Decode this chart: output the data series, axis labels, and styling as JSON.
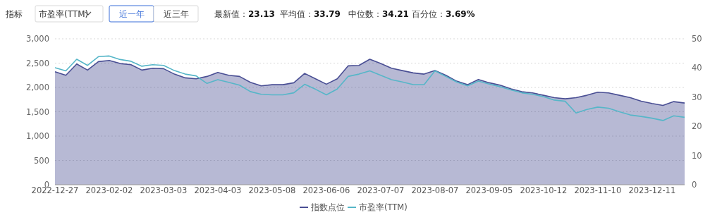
{
  "chart_data": {
    "type": "area",
    "annotations": [
      "指标",
      "市盈率(TTM)",
      "近一年",
      "近三年",
      "最新值：**23.13**",
      "平均值：**33.79**",
      "中位数：**34.21**",
      "百分位：**3.69%**"
    ],
    "categories": [
      "2022-12-27",
      null,
      null,
      null,
      null,
      "2023-02-02",
      null,
      null,
      null,
      null,
      "2023-03-03",
      null,
      null,
      null,
      null,
      "2023-04-03",
      null,
      null,
      null,
      null,
      "2023-05-08",
      null,
      null,
      null,
      null,
      "2023-06-06",
      null,
      null,
      null,
      null,
      "2023-07-07",
      null,
      null,
      null,
      null,
      "2023-08-07",
      null,
      null,
      null,
      null,
      "2023-09-05",
      null,
      null,
      null,
      null,
      "2023-10-12",
      null,
      null,
      null,
      null,
      "2023-11-10",
      null,
      null,
      null,
      null,
      "2023-12-11",
      null,
      null,
      null
    ],
    "series": [
      {
        "name": "指数点位",
        "type": "area",
        "color": "#4a4f94",
        "values": [
          2323,
          2250,
          2482,
          2356,
          2531,
          2555,
          2492,
          2468,
          2356,
          2395,
          2385,
          2274,
          2197,
          2177,
          2226,
          2308,
          2250,
          2226,
          2105,
          2032,
          2056,
          2056,
          2095,
          2289,
          2177,
          2066,
          2177,
          2444,
          2453,
          2579,
          2492,
          2395,
          2347,
          2298,
          2274,
          2347,
          2250,
          2129,
          2056,
          2163,
          2095,
          2047,
          1969,
          1911,
          1887,
          1839,
          1790,
          1766,
          1790,
          1839,
          1902,
          1887,
          1839,
          1790,
          1718,
          1669,
          1631,
          1708,
          1679
        ]
      },
      {
        "name": "市盈率(TTM)",
        "type": "line",
        "axis": "y2",
        "color": "#56b6c8",
        "values": [
          40.1,
          39.0,
          43.0,
          40.9,
          43.9,
          44.1,
          42.9,
          42.3,
          40.6,
          41.1,
          40.9,
          39.1,
          37.9,
          37.3,
          34.7,
          36.0,
          35.1,
          34.1,
          31.9,
          31.0,
          30.8,
          30.8,
          31.5,
          34.4,
          32.7,
          30.8,
          32.8,
          37.1,
          37.9,
          39.0,
          37.5,
          36.0,
          35.2,
          34.3,
          34.3,
          39.0,
          37.1,
          35.2,
          33.9,
          35.5,
          34.5,
          33.6,
          32.5,
          31.5,
          31.0,
          30.2,
          29.0,
          28.6,
          24.6,
          25.8,
          26.6,
          26.2,
          25.0,
          23.9,
          23.4,
          22.8,
          22.0,
          23.6,
          23.1
        ]
      }
    ],
    "ylim": [
      0,
      3000
    ],
    "yticks": [
      0,
      500,
      {
        "value": 1000,
        "label": "1,000"
      },
      {
        "value": 1500,
        "label": "1,500"
      },
      {
        "value": 2000,
        "label": "2,000"
      },
      {
        "value": 2500,
        "label": "2,500"
      },
      {
        "value": 3000,
        "label": "3,000"
      }
    ],
    "y2lim": [
      0,
      50
    ],
    "y2ticks": [
      0,
      10,
      20,
      30,
      40,
      50
    ],
    "grid": "y",
    "legend": "bottom",
    "marker": "none"
  }
}
